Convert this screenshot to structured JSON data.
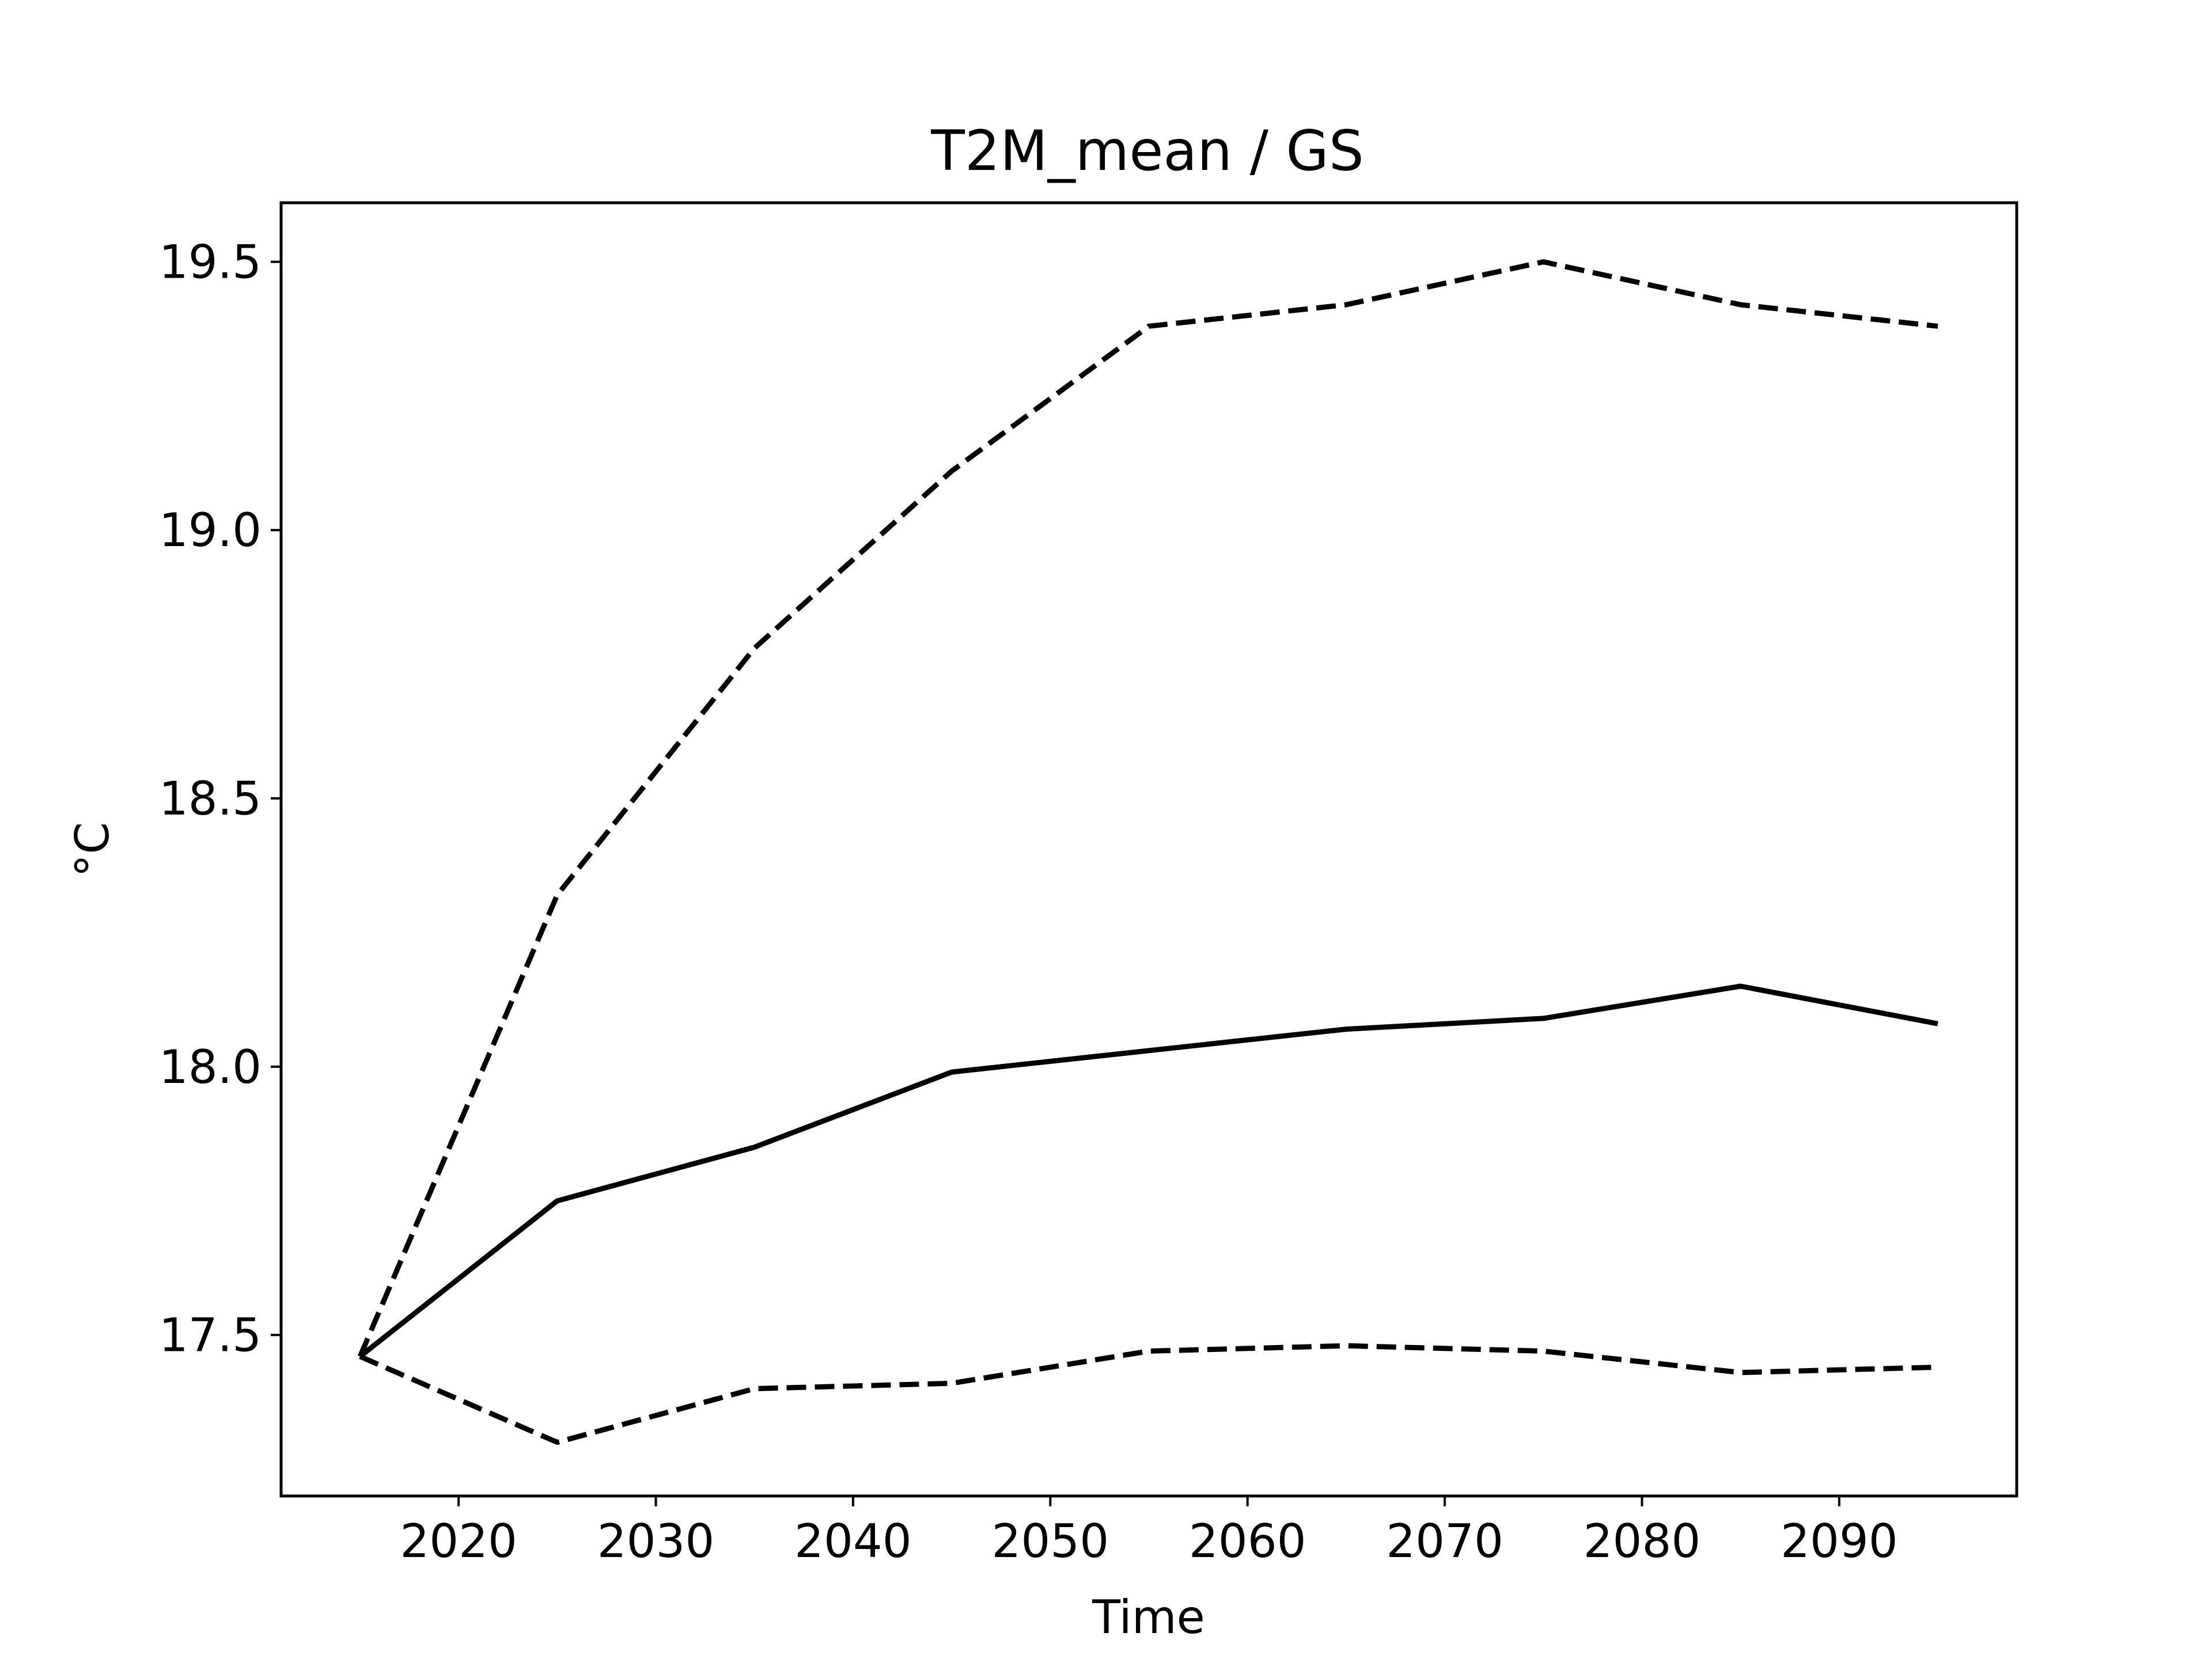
{
  "chart_data": {
    "type": "line",
    "title": "T2M_mean / GS",
    "xlabel": "Time",
    "ylabel": "°C",
    "xlim": [
      2011,
      2099
    ],
    "ylim": [
      17.2,
      19.61
    ],
    "x_ticks": [
      2020,
      2030,
      2040,
      2050,
      2060,
      2070,
      2080,
      2090
    ],
    "y_ticks": [
      17.5,
      18.0,
      18.5,
      19.0,
      19.5
    ],
    "y_tick_labels": [
      "17.5",
      "18.0",
      "18.5",
      "19.0",
      "19.5"
    ],
    "grid": false,
    "legend": false,
    "line_color": "#000000",
    "x": [
      2015,
      2025,
      2035,
      2045,
      2055,
      2065,
      2075,
      2085,
      2095
    ],
    "series": [
      {
        "style": "solid",
        "values": [
          17.46,
          17.75,
          17.85,
          17.99,
          18.03,
          18.07,
          18.09,
          18.15,
          18.08
        ]
      },
      {
        "style": "dashed",
        "values": [
          17.46,
          18.32,
          18.78,
          19.11,
          19.38,
          19.42,
          19.5,
          19.42,
          19.38
        ]
      },
      {
        "style": "dashed",
        "values": [
          17.46,
          17.3,
          17.4,
          17.41,
          17.47,
          17.48,
          17.47,
          17.43,
          17.44
        ]
      }
    ]
  }
}
